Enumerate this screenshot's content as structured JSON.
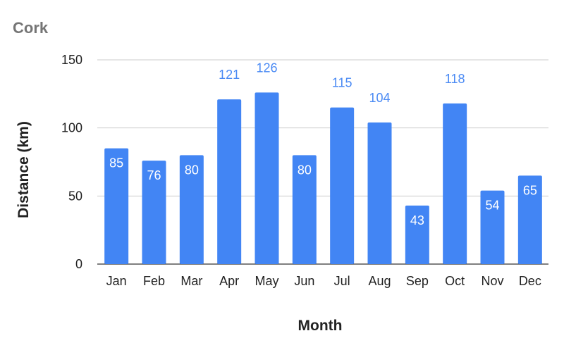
{
  "chart_data": {
    "type": "bar",
    "title": "Cork",
    "xlabel": "Month",
    "ylabel": "Distance (km)",
    "categories": [
      "Jan",
      "Feb",
      "Mar",
      "Apr",
      "May",
      "Jun",
      "Jul",
      "Aug",
      "Sep",
      "Oct",
      "Nov",
      "Dec"
    ],
    "values": [
      85,
      76,
      80,
      121,
      126,
      80,
      115,
      104,
      43,
      118,
      54,
      65
    ],
    "ylim": [
      0,
      150
    ],
    "yticks": [
      0,
      50,
      100,
      150
    ],
    "grid": true,
    "legend": "none",
    "data_labels": true
  },
  "colors": {
    "bar": "#4285f4",
    "label_inside": "#ffffff",
    "label_outside": "#4a8af4",
    "title": "#757575",
    "axis_text": "#222222",
    "grid": "#cccccc",
    "axis_line": "#333333"
  }
}
